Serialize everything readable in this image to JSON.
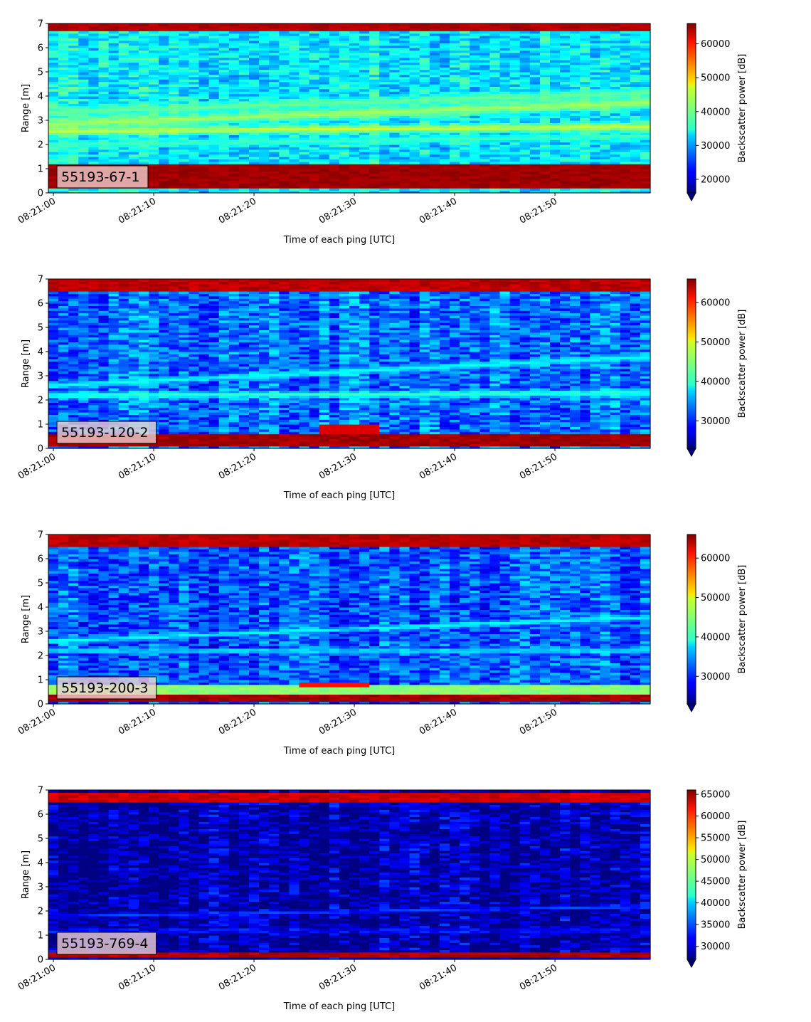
{
  "chart_data": [
    {
      "type": "heatmap",
      "annotation": "55193-67-1",
      "xlabel": "Time of each ping [UTC]",
      "ylabel": "Range [m]",
      "colorbar_label": "Backscatter power [dB]",
      "colormap": "jet",
      "colorbar_extend": "min",
      "xticks": [
        "08:21:00",
        "08:21:10",
        "08:21:20",
        "08:21:30",
        "08:21:40",
        "08:21:50"
      ],
      "xlim_seconds": [
        -0.5,
        59.5
      ],
      "yticks": [
        0,
        1,
        2,
        3,
        4,
        5,
        6,
        7
      ],
      "ylim": [
        0,
        7
      ],
      "clim": [
        16000,
        66000
      ],
      "cbar_ticks": [
        20000,
        30000,
        40000,
        50000,
        60000
      ],
      "cbar_tick_labels": [
        "20000",
        "30000",
        "40000",
        "50000",
        "60000"
      ],
      "bands": [
        {
          "label": "bottom surface echo",
          "y_from": 0.2,
          "y_to": 1.15,
          "value": 64500
        },
        {
          "label": "lower bright band",
          "start": [
            0,
            2.55
          ],
          "end": [
            60,
            2.75
          ],
          "width": 0.25,
          "value": 45000
        },
        {
          "label": "rising band",
          "start": [
            0,
            2.85
          ],
          "end": [
            60,
            3.75
          ],
          "width": 0.35,
          "value": 43000
        },
        {
          "label": "upper band",
          "start": [
            0,
            3.35
          ],
          "end": [
            60,
            4.15
          ],
          "width": 0.3,
          "value": 40000
        },
        {
          "label": "lower band 2",
          "start": [
            0,
            2.0
          ],
          "end": [
            60,
            2.35
          ],
          "width": 0.2,
          "value": 38000
        },
        {
          "label": "top surface echo",
          "y_from": 6.65,
          "y_to": 7.0,
          "value": 63500
        }
      ],
      "background_level": 34000
    },
    {
      "type": "heatmap",
      "annotation": "55193-120-2",
      "xlabel": "Time of each ping [UTC]",
      "ylabel": "Range [m]",
      "colorbar_label": "Backscatter power [dB]",
      "colormap": "jet",
      "colorbar_extend": "min",
      "xticks": [
        "08:21:00",
        "08:21:10",
        "08:21:20",
        "08:21:30",
        "08:21:40",
        "08:21:50"
      ],
      "xlim_seconds": [
        -0.5,
        59.5
      ],
      "yticks": [
        0,
        1,
        2,
        3,
        4,
        5,
        6,
        7
      ],
      "ylim": [
        0,
        7
      ],
      "clim": [
        23000,
        66000
      ],
      "cbar_ticks": [
        30000,
        40000,
        50000,
        60000
      ],
      "cbar_tick_labels": [
        "30000",
        "40000",
        "50000",
        "60000"
      ],
      "bands": [
        {
          "label": "bottom surface echo",
          "y_from": 0.1,
          "y_to": 0.6,
          "value": 64500
        },
        {
          "label": "orange patch",
          "x_from": 27,
          "x_to": 33,
          "y_from": 0.65,
          "y_to": 0.95,
          "value": 62000
        },
        {
          "label": "lower band",
          "start": [
            0,
            2.2
          ],
          "end": [
            60,
            2.3
          ],
          "width": 0.2,
          "value": 42000
        },
        {
          "label": "rising band",
          "start": [
            0,
            2.6
          ],
          "end": [
            60,
            3.8
          ],
          "width": 0.2,
          "value": 40000
        },
        {
          "label": "top surface echo",
          "y_from": 6.55,
          "y_to": 7.0,
          "value": 63500
        }
      ],
      "background_level": 33000
    },
    {
      "type": "heatmap",
      "annotation": "55193-200-3",
      "xlabel": "Time of each ping [UTC]",
      "ylabel": "Range [m]",
      "colorbar_label": "Backscatter power [dB]",
      "colormap": "jet",
      "colorbar_extend": "min",
      "xticks": [
        "08:21:00",
        "08:21:10",
        "08:21:20",
        "08:21:30",
        "08:21:40",
        "08:21:50"
      ],
      "xlim_seconds": [
        -0.5,
        59.5
      ],
      "yticks": [
        0,
        1,
        2,
        3,
        4,
        5,
        6,
        7
      ],
      "ylim": [
        0,
        7
      ],
      "clim": [
        23000,
        66000
      ],
      "cbar_ticks": [
        30000,
        40000,
        50000,
        60000
      ],
      "cbar_tick_labels": [
        "30000",
        "40000",
        "50000",
        "60000"
      ],
      "bands": [
        {
          "label": "bottom surface echo",
          "y_from": 0.1,
          "y_to": 0.4,
          "value": 64500
        },
        {
          "label": "near-bottom green",
          "y_from": 0.4,
          "y_to": 0.75,
          "value": 45000
        },
        {
          "label": "orange patch",
          "x_from": 25,
          "x_to": 32,
          "y_from": 0.72,
          "y_to": 0.85,
          "value": 60000
        },
        {
          "label": "lower band",
          "start": [
            0,
            2.2
          ],
          "end": [
            60,
            2.2
          ],
          "width": 0.15,
          "value": 39000
        },
        {
          "label": "rising band",
          "start": [
            0,
            2.6
          ],
          "end": [
            60,
            3.6
          ],
          "width": 0.15,
          "value": 40000
        },
        {
          "label": "top surface echo",
          "y_from": 6.55,
          "y_to": 7.0,
          "value": 63500
        }
      ],
      "background_level": 32000
    },
    {
      "type": "heatmap",
      "annotation": "55193-769-4",
      "xlabel": "Time of each ping [UTC]",
      "ylabel": "Range [m]",
      "colorbar_label": "Backscatter power [dB]",
      "colormap": "jet",
      "colorbar_extend": "min",
      "xticks": [
        "08:21:00",
        "08:21:10",
        "08:21:20",
        "08:21:30",
        "08:21:40",
        "08:21:50"
      ],
      "xlim_seconds": [
        -0.5,
        59.5
      ],
      "yticks": [
        0,
        1,
        2,
        3,
        4,
        5,
        6,
        7
      ],
      "ylim": [
        0,
        7
      ],
      "clim": [
        27000,
        66000
      ],
      "cbar_ticks": [
        30000,
        35000,
        40000,
        45000,
        50000,
        55000,
        60000,
        65000
      ],
      "cbar_tick_labels": [
        "30000",
        "35000",
        "40000",
        "45000",
        "50000",
        "55000",
        "60000",
        "65000"
      ],
      "bands": [
        {
          "label": "bottom surface echo",
          "y_from": 0.15,
          "y_to": 0.35,
          "value": 64000
        },
        {
          "label": "top surface echo",
          "y_from": 6.55,
          "y_to": 6.85,
          "value": 63000
        },
        {
          "label": "lower band",
          "start": [
            0,
            1.8
          ],
          "end": [
            60,
            2.2
          ],
          "width": 0.12,
          "value": 35000
        },
        {
          "label": "low band 2",
          "start": [
            0,
            1.2
          ],
          "end": [
            60,
            1.2
          ],
          "width": 0.1,
          "value": 34500
        }
      ],
      "background_level": 28500
    }
  ]
}
